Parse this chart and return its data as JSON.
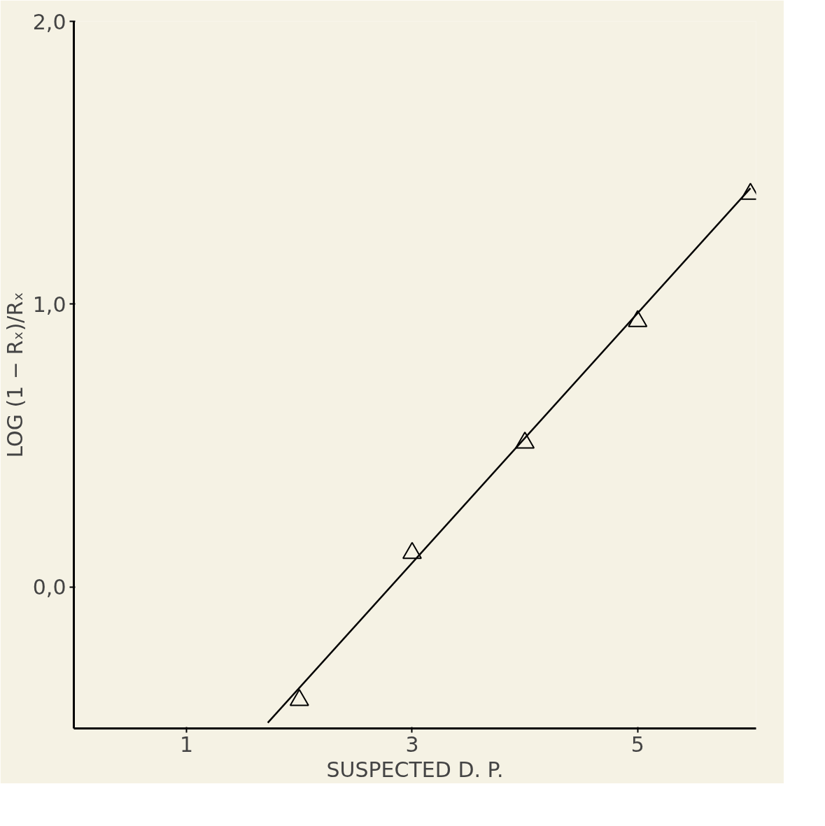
{
  "chart_data": {
    "type": "scatter",
    "xlabel": "SUSPECTED D. P.",
    "ylabel": "LOG (1 − Rₓ)/Rₓ",
    "xlim": [
      0,
      6.05
    ],
    "ylim": [
      -0.5,
      2.0
    ],
    "xticks": [
      1,
      3,
      5
    ],
    "yticks": [
      {
        "value": 0,
        "label": "0,0"
      },
      {
        "value": 1,
        "label": "1,0"
      },
      {
        "value": 2,
        "label": "2,0"
      }
    ],
    "grid": false,
    "series": [
      {
        "color": "#000000",
        "marker": "triangle",
        "x": [
          2,
          3,
          4,
          5,
          6
        ],
        "values": [
          -0.4,
          0.12,
          0.51,
          0.94,
          1.39
        ]
      },
      {
        "type": "line",
        "marker": "none",
        "color": "#000000",
        "x": [
          1.72,
          6.0
        ],
        "values": [
          -0.48,
          1.41
        ]
      }
    ]
  }
}
